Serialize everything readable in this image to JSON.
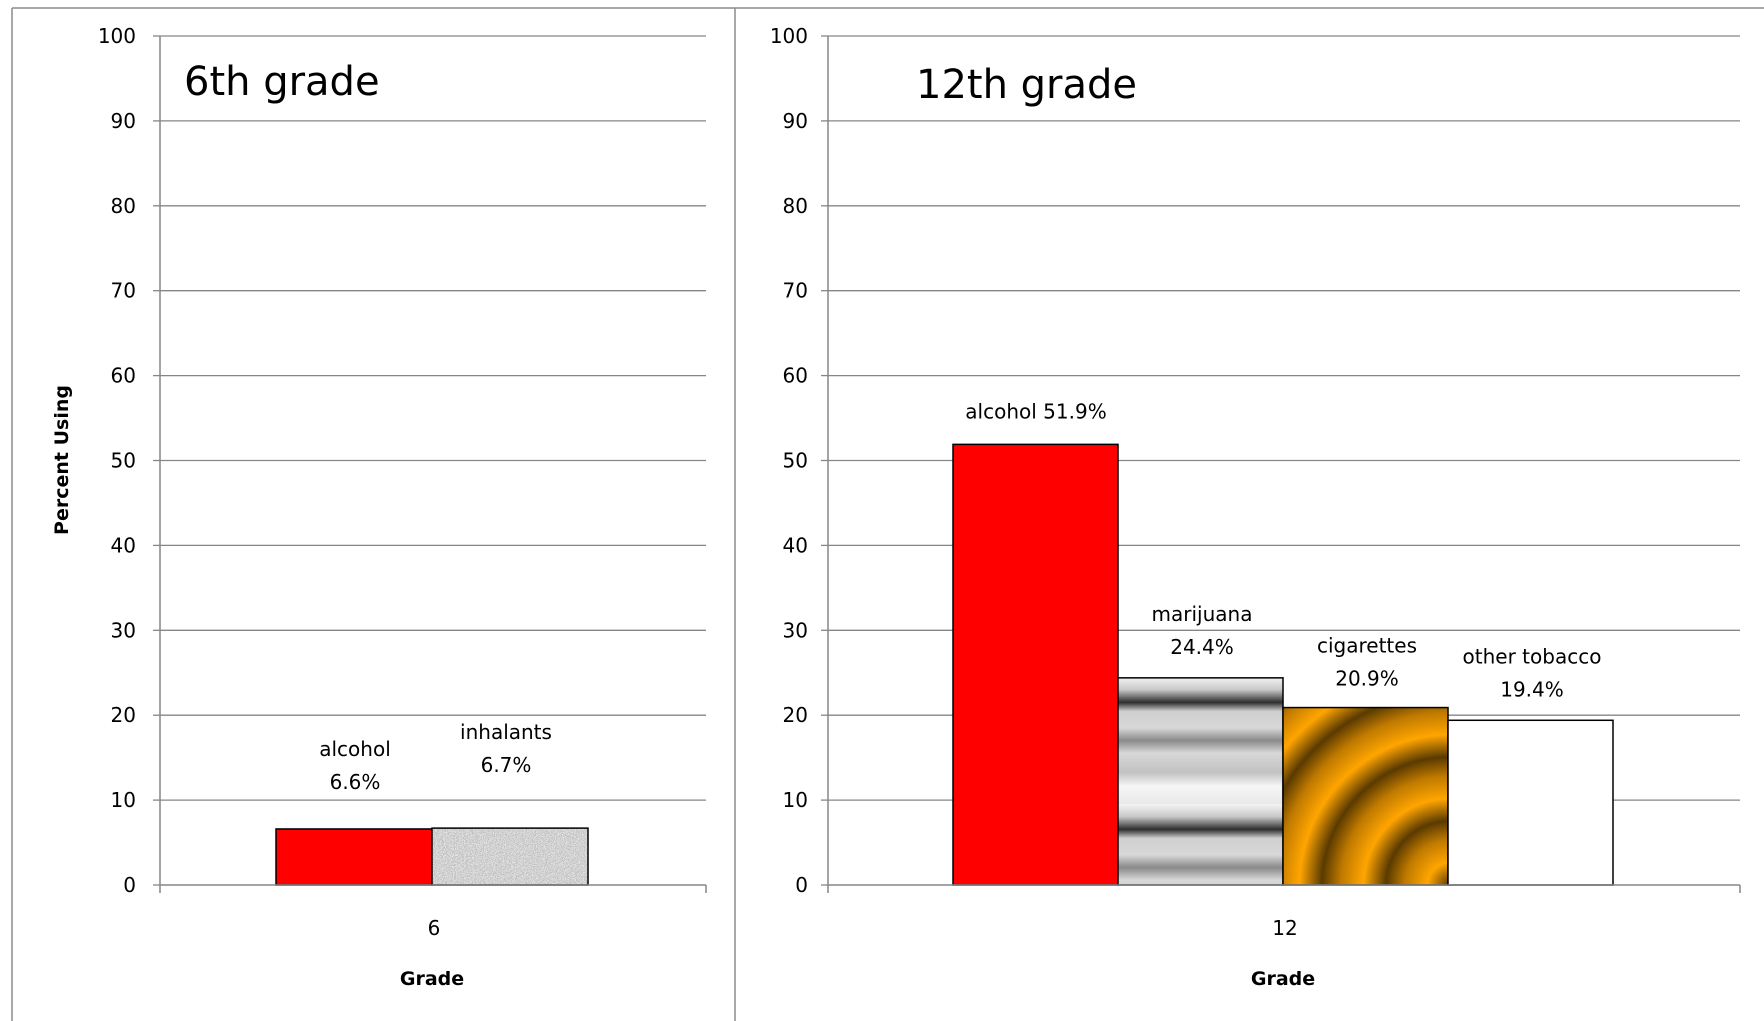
{
  "chart_data": [
    {
      "type": "bar",
      "title": "6th grade",
      "xlabel": "Grade",
      "ylabel": "Percent Using",
      "ylim": [
        0,
        100
      ],
      "yticks": [
        0,
        10,
        20,
        30,
        40,
        50,
        60,
        70,
        80,
        90,
        100
      ],
      "categories": [
        "6"
      ],
      "grid": true,
      "series": [
        {
          "name": "alcohol",
          "label_lines": [
            "alcohol",
            "6.6%"
          ],
          "values": [
            6.6
          ],
          "fill": "solid",
          "color": "#ff0000"
        },
        {
          "name": "inhalants",
          "label_lines": [
            "inhalants",
            "6.7%"
          ],
          "values": [
            6.7
          ],
          "fill": "granite",
          "color": "#a8a8a8"
        }
      ]
    },
    {
      "type": "bar",
      "title": "12th grade",
      "xlabel": "Grade",
      "ylabel": "",
      "ylim": [
        0,
        100
      ],
      "yticks": [
        0,
        10,
        20,
        30,
        40,
        50,
        60,
        70,
        80,
        90,
        100
      ],
      "categories": [
        "12"
      ],
      "grid": true,
      "series": [
        {
          "name": "alcohol",
          "label_lines": [
            "alcohol 51.9%"
          ],
          "values": [
            51.9
          ],
          "fill": "solid",
          "color": "#ff0000"
        },
        {
          "name": "marijuana",
          "label_lines": [
            "marijuana",
            "24.4%"
          ],
          "values": [
            24.4
          ],
          "fill": "chrome",
          "color": "#c0c0c0"
        },
        {
          "name": "cigarettes",
          "label_lines": [
            "cigarettes",
            "20.9%"
          ],
          "values": [
            20.9
          ],
          "fill": "gold",
          "color": "#f2a20a"
        },
        {
          "name": "other tobacco",
          "label_lines": [
            "other tobacco",
            "19.4%"
          ],
          "values": [
            19.4
          ],
          "fill": "solid",
          "color": "#ffffff"
        }
      ]
    }
  ]
}
